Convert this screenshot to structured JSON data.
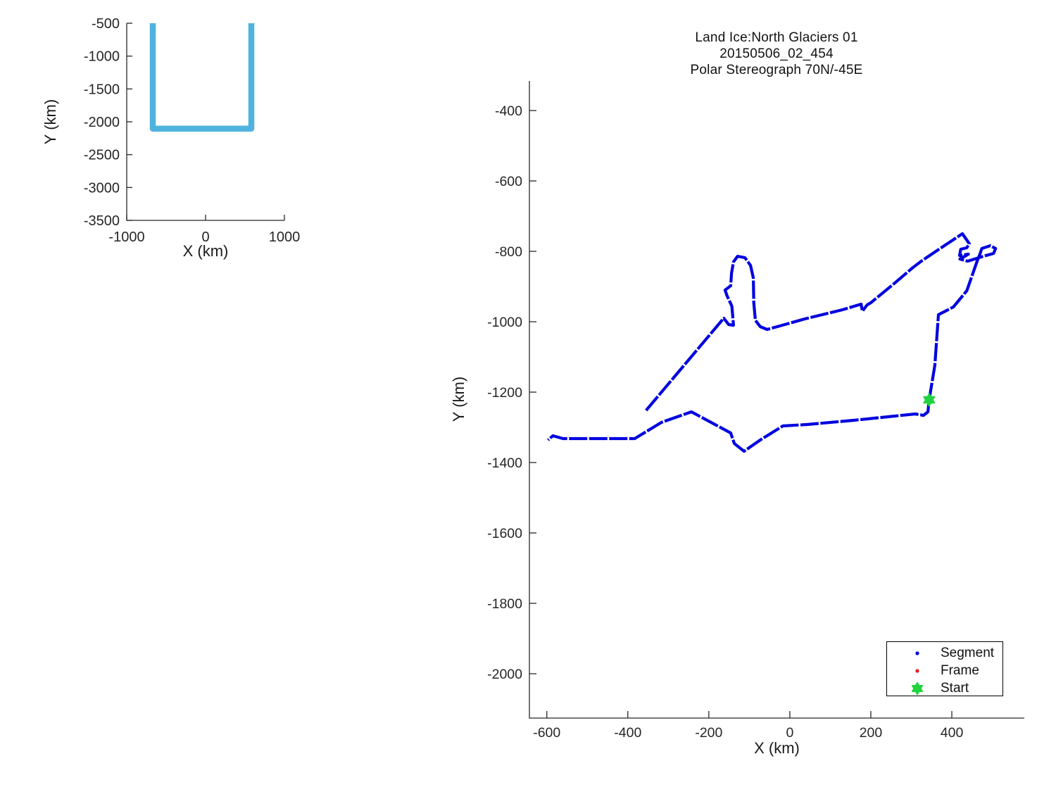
{
  "figure": {
    "background": "#ffffff",
    "axis_color": "#262626",
    "tick_label_color": "#262626",
    "text_color": "#1a1a1a"
  },
  "chart_data": [
    {
      "id": "overview",
      "type": "line",
      "title": "",
      "xlabel": "X (km)",
      "ylabel": "Y (km)",
      "xlim": [
        -1000,
        1000
      ],
      "ylim": [
        -3500,
        -500
      ],
      "xticks": [
        -1000,
        0,
        1000
      ],
      "yticks": [
        -500,
        -1000,
        -1500,
        -2000,
        -2500,
        -3000,
        -3500
      ],
      "grid": false,
      "series": [
        {
          "name": "coverage-outline",
          "color": "#4fb3de",
          "linewidth": 8.5,
          "dashed": false,
          "points": [
            [
              -670,
              -500
            ],
            [
              -670,
              -2105
            ],
            [
              580,
              -2105
            ],
            [
              580,
              -500
            ]
          ]
        }
      ]
    },
    {
      "id": "main",
      "type": "line",
      "title_lines": [
        "Land Ice:North Glaciers 01",
        "20150506_02_454",
        "Polar Stereograph 70N/-45E"
      ],
      "xlabel": "X (km)",
      "ylabel": "Y (km)",
      "xlim": [
        -643,
        579
      ],
      "ylim": [
        -2126,
        -316
      ],
      "xticks": [
        -600,
        -400,
        -200,
        0,
        200,
        400
      ],
      "yticks": [
        -400,
        -600,
        -800,
        -1000,
        -1200,
        -1400,
        -1600,
        -1800,
        -2000
      ],
      "grid": false,
      "legend": {
        "position": "lower right",
        "entries": [
          {
            "label": "Segment",
            "marker": "dot",
            "color": "#0000e0"
          },
          {
            "label": "Frame",
            "marker": "dot",
            "color": "#e02020"
          },
          {
            "label": "Start",
            "marker": "hexagram",
            "color": "#21d33e"
          }
        ]
      },
      "series": [
        {
          "name": "Segment",
          "color": "#0000e0",
          "linewidth": 4.2,
          "dashed": true,
          "points": [
            [
              -355,
              -1252
            ],
            [
              -172,
              -1002
            ],
            [
              -163,
              -990
            ],
            [
              -151,
              -1008
            ],
            [
              -139,
              -1010
            ],
            [
              -143,
              -956
            ],
            [
              -155,
              -926
            ],
            [
              -160,
              -910
            ],
            [
              -146,
              -898
            ],
            [
              -144,
              -862
            ],
            [
              -139,
              -830
            ],
            [
              -129,
              -814
            ],
            [
              -111,
              -818
            ],
            [
              -97,
              -840
            ],
            [
              -90,
              -876
            ],
            [
              -89,
              -946
            ],
            [
              -85,
              -996
            ],
            [
              -73,
              -1014
            ],
            [
              -56,
              -1022
            ],
            [
              37,
              -992
            ],
            [
              130,
              -966
            ],
            [
              176,
              -950
            ],
            [
              179,
              -970
            ],
            [
              191,
              -952
            ],
            [
              200,
              -946
            ],
            [
              257,
              -892
            ],
            [
              304,
              -846
            ],
            [
              327,
              -826
            ],
            [
              379,
              -786
            ],
            [
              426,
              -750
            ],
            [
              443,
              -778
            ],
            [
              437,
              -790
            ],
            [
              422,
              -794
            ],
            [
              419,
              -812
            ],
            [
              441,
              -808
            ],
            [
              420,
              -822
            ],
            [
              439,
              -828
            ],
            [
              478,
              -814
            ],
            [
              503,
              -806
            ],
            [
              508,
              -792
            ],
            [
              495,
              -784
            ],
            [
              474,
              -792
            ],
            [
              470,
              -806
            ],
            [
              463,
              -826
            ],
            [
              437,
              -912
            ],
            [
              404,
              -958
            ],
            [
              367,
              -980
            ],
            [
              358,
              -1124
            ],
            [
              344,
              -1222
            ],
            [
              341,
              -1256
            ],
            [
              330,
              -1266
            ],
            [
              310,
              -1262
            ],
            [
              158,
              -1280
            ],
            [
              43,
              -1292
            ],
            [
              -17,
              -1296
            ],
            [
              -73,
              -1336
            ],
            [
              -113,
              -1368
            ],
            [
              -137,
              -1346
            ],
            [
              -146,
              -1316
            ],
            [
              -243,
              -1256
            ],
            [
              -317,
              -1286
            ],
            [
              -383,
              -1332
            ],
            [
              -560,
              -1332
            ],
            [
              -585,
              -1324
            ],
            [
              -597,
              -1336
            ]
          ]
        }
      ],
      "start_marker": {
        "x": 344,
        "y": -1222,
        "color": "#21d33e",
        "size": 9
      }
    }
  ]
}
